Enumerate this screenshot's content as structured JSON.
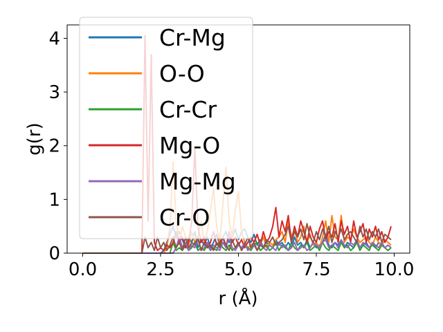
{
  "chart_data": {
    "type": "line",
    "title": "",
    "xlabel": "r (Å)",
    "ylabel": "g(r)",
    "xlim": [
      -0.5,
      10.5
    ],
    "ylim": [
      0,
      4.25
    ],
    "xticks": [
      0.0,
      2.5,
      5.0,
      7.5,
      10.0
    ],
    "xtick_labels": [
      "0.0",
      "2.5",
      "5.0",
      "7.5",
      "10.0"
    ],
    "yticks": [
      0,
      1,
      2,
      3,
      4
    ],
    "ytick_labels": [
      "0",
      "1",
      "2",
      "3",
      "4"
    ],
    "grid": false,
    "legend_position": "top-left",
    "x": [
      0.0,
      0.5,
      1.0,
      1.5,
      1.9,
      2.0,
      2.1,
      2.2,
      2.3,
      2.4,
      2.5,
      2.6,
      2.7,
      2.8,
      2.9,
      3.0,
      3.1,
      3.2,
      3.3,
      3.4,
      3.5,
      3.6,
      3.7,
      3.8,
      3.9,
      4.0,
      4.1,
      4.2,
      4.3,
      4.4,
      4.5,
      4.6,
      4.7,
      4.8,
      4.9,
      5.0,
      5.1,
      5.2,
      5.3,
      5.4,
      5.5,
      5.6,
      5.7,
      5.8,
      5.9,
      6.0,
      6.1,
      6.2,
      6.3,
      6.4,
      6.5,
      6.6,
      6.7,
      6.8,
      6.9,
      7.0,
      7.1,
      7.2,
      7.3,
      7.4,
      7.5,
      7.6,
      7.7,
      7.8,
      7.9,
      8.0,
      8.1,
      8.2,
      8.3,
      8.4,
      8.5,
      8.6,
      8.7,
      8.8,
      8.9,
      9.0,
      9.1,
      9.2,
      9.3,
      9.4,
      9.5,
      9.6,
      9.7,
      9.8,
      9.9
    ],
    "series": [
      {
        "name": "Cr-Mg",
        "color": "#1f77b4",
        "values": [
          0,
          0,
          0,
          0,
          0,
          0,
          0,
          0,
          0,
          0,
          0,
          0.05,
          0.2,
          0.35,
          0.5,
          0.3,
          0.4,
          0.25,
          0.1,
          0.3,
          0.2,
          0.4,
          0.1,
          0.25,
          0.15,
          0.3,
          0.1,
          0.2,
          0.35,
          0.15,
          0.3,
          0.4,
          0.2,
          0.3,
          0.45,
          0.25,
          0.4,
          0.45,
          0.3,
          0.2,
          0.35,
          0.15,
          0.25,
          0.1,
          0.2,
          0.15,
          0.1,
          0.25,
          0.15,
          0.2,
          0.1,
          0.2,
          0.1,
          0.3,
          0.15,
          0.2,
          0.1,
          0.25,
          0.1,
          0.2,
          0.1,
          0.15,
          0.2,
          0.35,
          0.15,
          0.1,
          0.2,
          0.15,
          0.25,
          0.1,
          0.2,
          0.15,
          0.1,
          0.25,
          0.1,
          0.15,
          0.2,
          0.1,
          0.15,
          0.1,
          0.2,
          0.15,
          0.1,
          0.15,
          0.1
        ]
      },
      {
        "name": "O-O",
        "color": "#ff7f0e",
        "values": [
          0,
          0,
          0,
          0,
          0,
          0,
          0,
          0,
          0,
          0,
          0,
          0,
          0.1,
          0.5,
          1.7,
          0.6,
          0.2,
          0.5,
          0.3,
          0.15,
          0.4,
          0.2,
          0.3,
          0.6,
          0.2,
          0.4,
          0.8,
          1.2,
          0.5,
          0.2,
          0.9,
          1.6,
          0.6,
          0.3,
          0.8,
          1.15,
          0.4,
          0.2,
          0.1,
          0.15,
          0.2,
          0.35,
          0.15,
          0.3,
          0.1,
          0.2,
          0.15,
          0.25,
          0.3,
          0.4,
          0.2,
          0.6,
          0.3,
          0.45,
          0.2,
          0.3,
          0.5,
          0.2,
          0.35,
          0.15,
          0.2,
          0.1,
          0.3,
          0.6,
          0.2,
          0.7,
          0.3,
          0.25,
          0.7,
          0.2,
          0.3,
          0.25,
          0.45,
          0.3,
          0.2,
          0.25,
          0.3,
          0.2,
          0.15,
          0.3,
          0.2,
          0.15,
          0.25,
          0.2,
          0.15
        ]
      },
      {
        "name": "Cr-Cr",
        "color": "#2ca02c",
        "values": [
          0,
          0,
          0,
          0,
          0,
          0,
          0,
          0,
          0,
          0,
          0,
          0,
          0,
          0,
          0.2,
          0.05,
          0.1,
          0.05,
          0.15,
          0.05,
          0.1,
          0.2,
          0.05,
          0.1,
          0.05,
          0.15,
          0.05,
          0.1,
          0.05,
          0.2,
          0.1,
          0.05,
          0.15,
          0.05,
          0.1,
          0.2,
          0.05,
          0.15,
          0.1,
          0.05,
          0.15,
          0.2,
          0.05,
          0.1,
          0.15,
          0.05,
          0.1,
          0.2,
          0.05,
          0.15,
          0.1,
          0.05,
          0.2,
          0.1,
          0.05,
          0.15,
          0.1,
          0.2,
          0.05,
          0.1,
          0.15,
          0.05,
          0.2,
          0.1,
          0.05,
          0.15,
          0.1,
          0.05,
          0.2,
          0.1,
          0.15,
          0.05,
          0.1,
          0.2,
          0.05,
          0.15,
          0.1,
          0.05,
          0.2,
          0.1,
          0.05,
          0.15,
          0.1,
          0.05,
          0.1
        ]
      },
      {
        "name": "Mg-O",
        "color": "#d62728",
        "values": [
          0,
          0,
          0,
          0,
          0,
          4.05,
          0.6,
          3.7,
          0.2,
          0.05,
          0.1,
          0.05,
          0.15,
          0.1,
          0.2,
          0.4,
          0.2,
          0.3,
          0.1,
          0.2,
          0.6,
          1.95,
          0.5,
          0.2,
          0.3,
          0.1,
          0.2,
          0.4,
          0.15,
          0.2,
          0.3,
          0.1,
          0.4,
          0.2,
          0.3,
          0.15,
          0.25,
          0.1,
          0.2,
          0.3,
          0.2,
          0.35,
          0.15,
          0.4,
          0.2,
          0.3,
          0.5,
          0.85,
          0.3,
          0.6,
          0.4,
          0.7,
          0.2,
          0.5,
          0.3,
          0.6,
          0.4,
          0.2,
          0.5,
          0.3,
          0.2,
          0.45,
          0.6,
          0.25,
          0.4,
          0.3,
          0.55,
          0.2,
          0.6,
          0.35,
          0.5,
          0.2,
          0.6,
          0.3,
          0.4,
          0.55,
          0.2,
          0.45,
          0.3,
          0.5,
          0.25,
          0.4,
          0.2,
          0.3,
          0.5
        ]
      },
      {
        "name": "Mg-Mg",
        "color": "#9467bd",
        "values": [
          0,
          0,
          0,
          0,
          0,
          0,
          0,
          0,
          0,
          0,
          0,
          0,
          0,
          0,
          0,
          0.1,
          0.3,
          0.1,
          0.2,
          0.05,
          0.15,
          0.1,
          0.25,
          0.05,
          0.1,
          0.2,
          0.05,
          0.15,
          0.1,
          0.05,
          0.2,
          0.1,
          0.3,
          0.1,
          0.05,
          0.15,
          0.1,
          0.2,
          0.05,
          0.1,
          0.15,
          0.05,
          0.2,
          0.1,
          0.05,
          0.15,
          0.1,
          0.05,
          0.2,
          0.1,
          0.15,
          0.05,
          0.1,
          0.2,
          0.05,
          0.1,
          0.15,
          0.05,
          0.1,
          0.2,
          0.15,
          0.1,
          0.2,
          0.25,
          0.1,
          0.15,
          0.2,
          0.1,
          0.25,
          0.15,
          0.1,
          0.2,
          0.15,
          0.25,
          0.1,
          0.2,
          0.15,
          0.1,
          0.2,
          0.15,
          0.1,
          0.2,
          0.1,
          0.15,
          0.1
        ]
      },
      {
        "name": "Cr-O",
        "color": "#8c564b",
        "values": [
          0,
          0,
          0,
          0,
          0,
          0.3,
          0.1,
          0.2,
          0.05,
          0.3,
          0.1,
          0.2,
          0.05,
          0.15,
          0.3,
          0.1,
          0.2,
          0.05,
          0.3,
          0.1,
          0.2,
          0.15,
          0.3,
          0.05,
          0.2,
          0.1,
          0.15,
          0.05,
          0.2,
          0.1,
          0.3,
          0.15,
          0.05,
          0.25,
          0.1,
          0.2,
          0.05,
          0.15,
          0.3,
          0.1,
          0.2,
          0.05,
          0.15,
          0.1,
          0.25,
          0.2,
          0.3,
          0.15,
          0.2,
          0.25,
          0.35,
          0.5,
          0.2,
          0.4,
          0.3,
          0.45,
          0.25,
          0.55,
          0.3,
          0.2,
          0.4,
          0.25,
          0.45,
          0.3,
          0.5,
          0.2,
          0.4,
          0.3,
          0.45,
          0.25,
          0.35,
          0.4,
          0.3,
          0.2,
          0.5,
          0.3,
          0.45,
          0.25,
          0.4,
          0.3,
          0.45,
          0.2,
          0.35,
          0.3,
          0.25
        ]
      }
    ]
  }
}
